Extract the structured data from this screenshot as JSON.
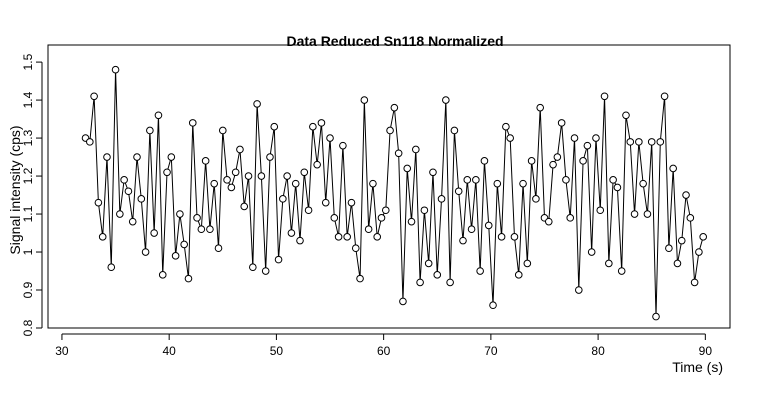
{
  "chart_data": {
    "type": "line",
    "title": "Data Reduced Sn118 Normalized",
    "x_label": "Time (s)",
    "y_label": "Signal intensity (cps)",
    "x": [
      32.2,
      32.6,
      33.0,
      33.4,
      33.8,
      34.2,
      34.6,
      35.0,
      35.4,
      35.8,
      36.2,
      36.6,
      37.0,
      37.4,
      37.8,
      38.2,
      38.6,
      39.0,
      39.4,
      39.8,
      40.2,
      40.6,
      41.0,
      41.4,
      41.8,
      42.2,
      42.6,
      43.0,
      43.4,
      43.8,
      44.2,
      44.6,
      45.0,
      45.4,
      45.8,
      46.2,
      46.6,
      47.0,
      47.4,
      47.8,
      48.2,
      48.6,
      49.0,
      49.4,
      49.8,
      50.2,
      50.6,
      51.0,
      51.4,
      51.8,
      52.2,
      52.6,
      53.0,
      53.4,
      53.8,
      54.2,
      54.6,
      55.0,
      55.4,
      55.8,
      56.2,
      56.6,
      57.0,
      57.4,
      57.8,
      58.2,
      58.6,
      59.0,
      59.4,
      59.8,
      60.2,
      60.6,
      61.0,
      61.4,
      61.8,
      62.2,
      62.6,
      63.0,
      63.4,
      63.8,
      64.2,
      64.6,
      65.0,
      65.4,
      65.8,
      66.2,
      66.6,
      67.0,
      67.4,
      67.8,
      68.2,
      68.6,
      69.0,
      69.4,
      69.8,
      70.2,
      70.6,
      71.0,
      71.4,
      71.8,
      72.2,
      72.6,
      73.0,
      73.4,
      73.8,
      74.2,
      74.6,
      75.0,
      75.4,
      75.8,
      76.2,
      76.6,
      77.0,
      77.4,
      77.8,
      78.2,
      78.6,
      79.0,
      79.4,
      79.8,
      80.2,
      80.6,
      81.0,
      81.4,
      81.8,
      82.2,
      82.6,
      83.0,
      83.4,
      83.8,
      84.2,
      84.6,
      85.0,
      85.4,
      85.8,
      86.2,
      86.6,
      87.0,
      87.4,
      87.8,
      88.2,
      88.6,
      89.0,
      89.4,
      89.8
    ],
    "values": [
      1.3,
      1.29,
      1.41,
      1.13,
      1.04,
      1.25,
      0.96,
      1.48,
      1.1,
      1.19,
      1.16,
      1.08,
      1.25,
      1.14,
      1.0,
      1.32,
      1.05,
      1.36,
      0.94,
      1.21,
      1.25,
      0.99,
      1.1,
      1.02,
      0.93,
      1.34,
      1.09,
      1.06,
      1.24,
      1.06,
      1.18,
      1.01,
      1.32,
      1.19,
      1.17,
      1.21,
      1.27,
      1.12,
      1.2,
      0.96,
      1.39,
      1.2,
      0.95,
      1.25,
      1.33,
      0.98,
      1.14,
      1.2,
      1.05,
      1.18,
      1.03,
      1.21,
      1.11,
      1.33,
      1.23,
      1.34,
      1.13,
      1.3,
      1.09,
      1.04,
      1.28,
      1.04,
      1.13,
      1.01,
      0.93,
      1.4,
      1.06,
      1.18,
      1.04,
      1.09,
      1.11,
      1.32,
      1.38,
      1.26,
      0.87,
      1.22,
      1.08,
      1.27,
      0.92,
      1.11,
      0.97,
      1.21,
      0.94,
      1.14,
      1.4,
      0.92,
      1.32,
      1.16,
      1.03,
      1.19,
      1.06,
      1.19,
      0.95,
      1.24,
      1.07,
      0.86,
      1.18,
      1.04,
      1.33,
      1.3,
      1.04,
      0.94,
      1.18,
      0.97,
      1.24,
      1.14,
      1.38,
      1.09,
      1.08,
      1.23,
      1.25,
      1.34,
      1.19,
      1.09,
      1.3,
      0.9,
      1.24,
      1.28,
      1.0,
      1.3,
      1.11,
      1.41,
      0.97,
      1.19,
      1.17,
      0.95,
      1.36,
      1.29,
      1.1,
      1.29,
      1.18,
      1.1,
      1.29,
      0.83,
      1.29,
      1.41,
      1.01,
      1.22,
      0.97,
      1.03,
      1.15,
      1.09,
      0.92,
      1.0,
      1.04
    ],
    "color": "#000000",
    "xlim": [
      28.7,
      92.3
    ],
    "xticks": [
      30,
      40,
      50,
      60,
      70,
      80,
      90
    ],
    "ylim": [
      0.8,
      1.545
    ],
    "yticks": [
      0.8,
      0.9,
      1.0,
      1.1,
      1.2,
      1.3,
      1.4,
      1.5
    ]
  }
}
